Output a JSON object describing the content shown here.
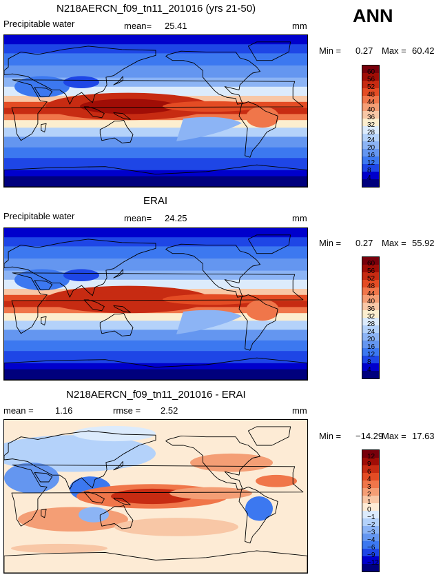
{
  "overall_label": "ANN",
  "colors": {
    "abs": [
      "#00007d",
      "#0000cc",
      "#1e46e6",
      "#3c78f0",
      "#6496f0",
      "#8cb4f5",
      "#b4d2fa",
      "#dcebfc",
      "#fceecf",
      "#f8c7a6",
      "#f49e75",
      "#f0764a",
      "#e44c24",
      "#c72b12",
      "#a00d06",
      "#78000b"
    ],
    "diff": [
      "#00007d",
      "#0000cc",
      "#1e46e6",
      "#3c78f0",
      "#6496f0",
      "#8cb4f5",
      "#b4d2fa",
      "#dcebfc",
      "#fdebd5",
      "#f8c7a6",
      "#f49e75",
      "#f0764a",
      "#e44c24",
      "#c72b12",
      "#a00d06",
      "#78000b"
    ]
  },
  "panels": [
    {
      "title": "N218AERCN_f09_tn11_201016 (yrs 21-50)",
      "left_label": "Precipitable water",
      "mean_label": "mean=",
      "mean_value": "25.41",
      "units": "mm",
      "min_label": "Min =",
      "min_value": "0.27",
      "max_label": "Max =",
      "max_value": "60.42"
    },
    {
      "title": "ERAI",
      "left_label": "Precipitable water",
      "mean_label": "mean=",
      "mean_value": "24.25",
      "units": "mm",
      "min_label": "Min =",
      "min_value": "0.27",
      "max_label": "Max =",
      "max_value": "55.92"
    },
    {
      "title": "N218AERCN_f09_tn11_201016 - ERAI",
      "mean_label": "mean =",
      "mean_value": "1.16",
      "rmse_label": "rmse =",
      "rmse_value": "2.52",
      "units": "mm",
      "min_label": "Min =",
      "min_value": "−14.29",
      "max_label": "Max =",
      "max_value": "17.63"
    }
  ],
  "chart_data": [
    {
      "type": "heatmap",
      "title": "N218AERCN_f09_tn11_201016 (yrs 21-50)",
      "variable": "Precipitable water",
      "units": "mm",
      "mean": 25.41,
      "min": 0.27,
      "max": 60.42,
      "colorbar_levels": [
        4,
        8,
        12,
        16,
        20,
        24,
        28,
        32,
        36,
        40,
        44,
        48,
        52,
        56,
        60
      ]
    },
    {
      "type": "heatmap",
      "title": "ERAI",
      "variable": "Precipitable water",
      "units": "mm",
      "mean": 24.25,
      "min": 0.27,
      "max": 55.92,
      "colorbar_levels": [
        4,
        8,
        12,
        16,
        20,
        24,
        28,
        32,
        36,
        40,
        44,
        48,
        52,
        56,
        60
      ]
    },
    {
      "type": "heatmap",
      "title": "N218AERCN_f09_tn11_201016 - ERAI",
      "units": "mm",
      "mean": 1.16,
      "rmse": 2.52,
      "min": -14.29,
      "max": 17.63,
      "colorbar_levels": [
        -12,
        -9,
        -6,
        -4,
        -3,
        -2,
        -1,
        0,
        1,
        2,
        3,
        4,
        6,
        9,
        12
      ]
    }
  ],
  "colorbar_tick_text": {
    "abs": [
      "60",
      "56",
      "52",
      "48",
      "44",
      "40",
      "36",
      "32",
      "28",
      "24",
      "20",
      "16",
      "12",
      "8",
      "4"
    ],
    "diff": [
      "12",
      "9",
      "6",
      "4",
      "3",
      "2",
      "1",
      "0",
      "−1",
      "−2",
      "−3",
      "−4",
      "−6",
      "−9",
      "−12"
    ]
  }
}
